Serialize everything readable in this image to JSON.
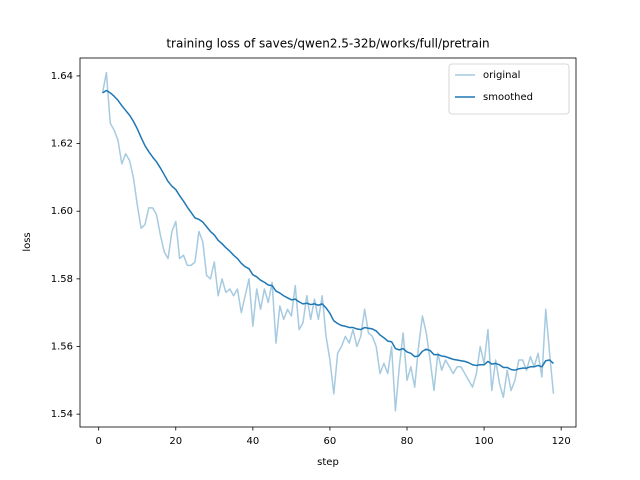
{
  "chart_data": {
    "type": "line",
    "title": "training loss of saves/qwen2.5-32b/works/full/pretrain",
    "xlabel": "step",
    "ylabel": "loss",
    "x": [
      1,
      2,
      3,
      4,
      5,
      6,
      7,
      8,
      9,
      10,
      11,
      12,
      13,
      14,
      15,
      16,
      17,
      18,
      19,
      20,
      21,
      22,
      23,
      24,
      25,
      26,
      27,
      28,
      29,
      30,
      31,
      32,
      33,
      34,
      35,
      36,
      37,
      38,
      39,
      40,
      41,
      42,
      43,
      44,
      45,
      46,
      47,
      48,
      49,
      50,
      51,
      52,
      53,
      54,
      55,
      56,
      57,
      58,
      59,
      60,
      61,
      62,
      63,
      64,
      65,
      66,
      67,
      68,
      69,
      70,
      71,
      72,
      73,
      74,
      75,
      76,
      77,
      78,
      79,
      80,
      81,
      82,
      83,
      84,
      85,
      86,
      87,
      88,
      89,
      90,
      91,
      92,
      93,
      94,
      95,
      96,
      97,
      98,
      99,
      100,
      101,
      102,
      103,
      104,
      105,
      106,
      107,
      108,
      109,
      110,
      111,
      112,
      113,
      114,
      115,
      116,
      117,
      118
    ],
    "series": [
      {
        "name": "original",
        "color": "#a6cae0",
        "width": 1.5,
        "values": [
          1.635,
          1.641,
          1.626,
          1.624,
          1.621,
          1.614,
          1.617,
          1.615,
          1.61,
          1.602,
          1.595,
          1.596,
          1.601,
          1.601,
          1.599,
          1.593,
          1.588,
          1.586,
          1.594,
          1.597,
          1.586,
          1.587,
          1.584,
          1.584,
          1.585,
          1.594,
          1.591,
          1.581,
          1.58,
          1.585,
          1.575,
          1.58,
          1.576,
          1.577,
          1.575,
          1.577,
          1.57,
          1.575,
          1.58,
          1.566,
          1.577,
          1.571,
          1.577,
          1.573,
          1.579,
          1.561,
          1.572,
          1.568,
          1.571,
          1.569,
          1.578,
          1.565,
          1.567,
          1.575,
          1.568,
          1.574,
          1.568,
          1.575,
          1.563,
          1.556,
          1.546,
          1.558,
          1.56,
          1.563,
          1.561,
          1.565,
          1.56,
          1.563,
          1.571,
          1.564,
          1.563,
          1.56,
          1.552,
          1.555,
          1.552,
          1.56,
          1.541,
          1.554,
          1.564,
          1.55,
          1.554,
          1.548,
          1.56,
          1.569,
          1.564,
          1.556,
          1.547,
          1.558,
          1.553,
          1.556,
          1.554,
          1.552,
          1.554,
          1.554,
          1.552,
          1.55,
          1.548,
          1.552,
          1.56,
          1.555,
          1.565,
          1.547,
          1.556,
          1.549,
          1.545,
          1.553,
          1.547,
          1.55,
          1.556,
          1.556,
          1.553,
          1.557,
          1.554,
          1.558,
          1.551,
          1.571,
          1.558,
          1.546
        ]
      },
      {
        "name": "smoothed",
        "color": "#1f77b4",
        "width": 1.5,
        "values": [
          1.635,
          1.6357,
          1.635,
          1.634,
          1.6328,
          1.6312,
          1.6298,
          1.6284,
          1.6266,
          1.6244,
          1.6218,
          1.6194,
          1.6176,
          1.616,
          1.6146,
          1.6128,
          1.6108,
          1.6088,
          1.6074,
          1.6064,
          1.6046,
          1.603,
          1.6012,
          1.5996,
          1.598,
          1.5976,
          1.5968,
          1.5954,
          1.594,
          1.593,
          1.5914,
          1.5904,
          1.5892,
          1.5882,
          1.587,
          1.586,
          1.5846,
          1.5836,
          1.583,
          1.5812,
          1.5806,
          1.5796,
          1.579,
          1.5782,
          1.578,
          1.5764,
          1.5758,
          1.575,
          1.5744,
          1.5738,
          1.574,
          1.5732,
          1.5726,
          1.5728,
          1.5724,
          1.5726,
          1.5722,
          1.5726,
          1.5714,
          1.5698,
          1.5676,
          1.5668,
          1.5662,
          1.566,
          1.5656,
          1.5656,
          1.5652,
          1.565,
          1.5656,
          1.5654,
          1.5652,
          1.5646,
          1.5634,
          1.5626,
          1.5616,
          1.5614,
          1.5594,
          1.559,
          1.5594,
          1.5584,
          1.558,
          1.557,
          1.5572,
          1.5586,
          1.5592,
          1.5588,
          1.5576,
          1.5576,
          1.5572,
          1.557,
          1.5566,
          1.5562,
          1.556,
          1.5558,
          1.5556,
          1.5552,
          1.5546,
          1.5544,
          1.5546,
          1.5546,
          1.5556,
          1.5548,
          1.555,
          1.5546,
          1.5538,
          1.5538,
          1.5532,
          1.553,
          1.5534,
          1.5536,
          1.5536,
          1.554,
          1.554,
          1.5544,
          1.554,
          1.5558,
          1.556,
          1.555
        ]
      }
    ],
    "xlim": [
      -4.85,
      123.85
    ],
    "xticks": [
      0,
      20,
      40,
      60,
      80,
      100,
      120
    ],
    "ylim": [
      1.5362,
      1.6453
    ],
    "yticks": [
      1.54,
      1.56,
      1.58,
      {
        "value": 1.6,
        "label": "1.60"
      },
      1.62,
      1.64
    ],
    "grid": false,
    "legend": "upper right"
  }
}
